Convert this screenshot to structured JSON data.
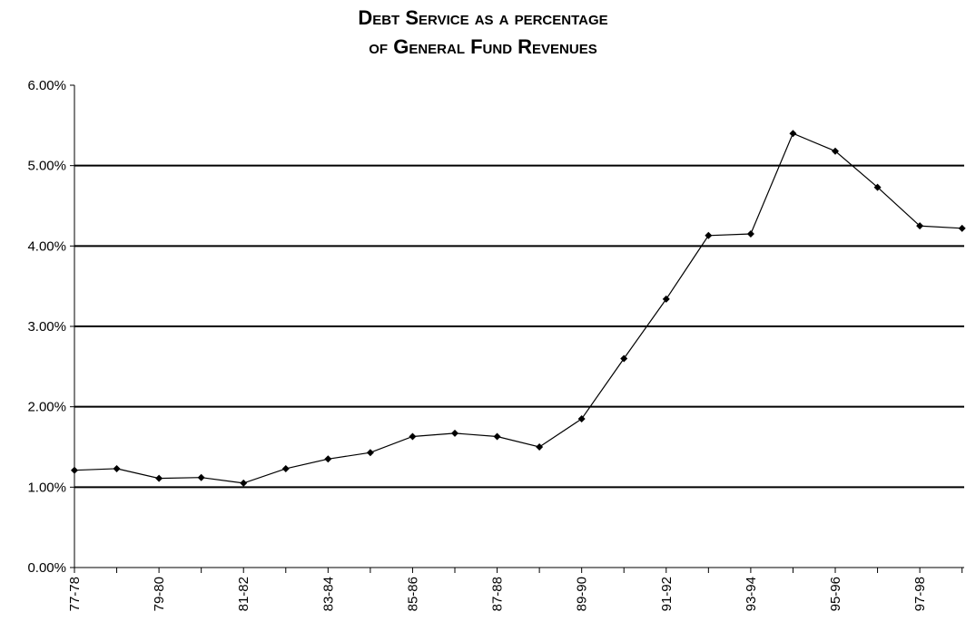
{
  "chart_data": {
    "type": "line",
    "title": [
      "Debt Service as a percentage",
      "of General Fund Revenues"
    ],
    "xlabel": "",
    "ylabel": "",
    "x": [
      "77-78",
      "78-79",
      "79-80",
      "80-81",
      "81-82",
      "82-83",
      "83-84",
      "84-85",
      "85-86",
      "86-87",
      "87-88",
      "88-89",
      "89-90",
      "90-91",
      "91-92",
      "92-93",
      "93-94",
      "94-95",
      "95-96",
      "96-97",
      "97-98",
      "98-99"
    ],
    "x_tick_labels": [
      "77-78",
      "",
      "79-80",
      "",
      "81-82",
      "",
      "83-84",
      "",
      "85-86",
      "",
      "87-88",
      "",
      "89-90",
      "",
      "91-92",
      "",
      "93-94",
      "",
      "95-96",
      "",
      "97-98",
      ""
    ],
    "series": [
      {
        "values": [
          1.21,
          1.23,
          1.11,
          1.12,
          1.05,
          1.23,
          1.35,
          1.43,
          1.63,
          1.67,
          1.63,
          1.5,
          1.85,
          2.6,
          3.34,
          4.13,
          4.15,
          5.4,
          5.18,
          4.73,
          4.25,
          4.22
        ]
      }
    ],
    "y_unit": "percent",
    "ylim": [
      0,
      6
    ],
    "y_ticks": [
      "0.00%",
      "1.00%",
      "2.00%",
      "3.00%",
      "4.00%",
      "5.00%",
      "6.00%"
    ],
    "grid": true,
    "legend": "none",
    "line_color": "#000000",
    "marker": "diamond"
  }
}
